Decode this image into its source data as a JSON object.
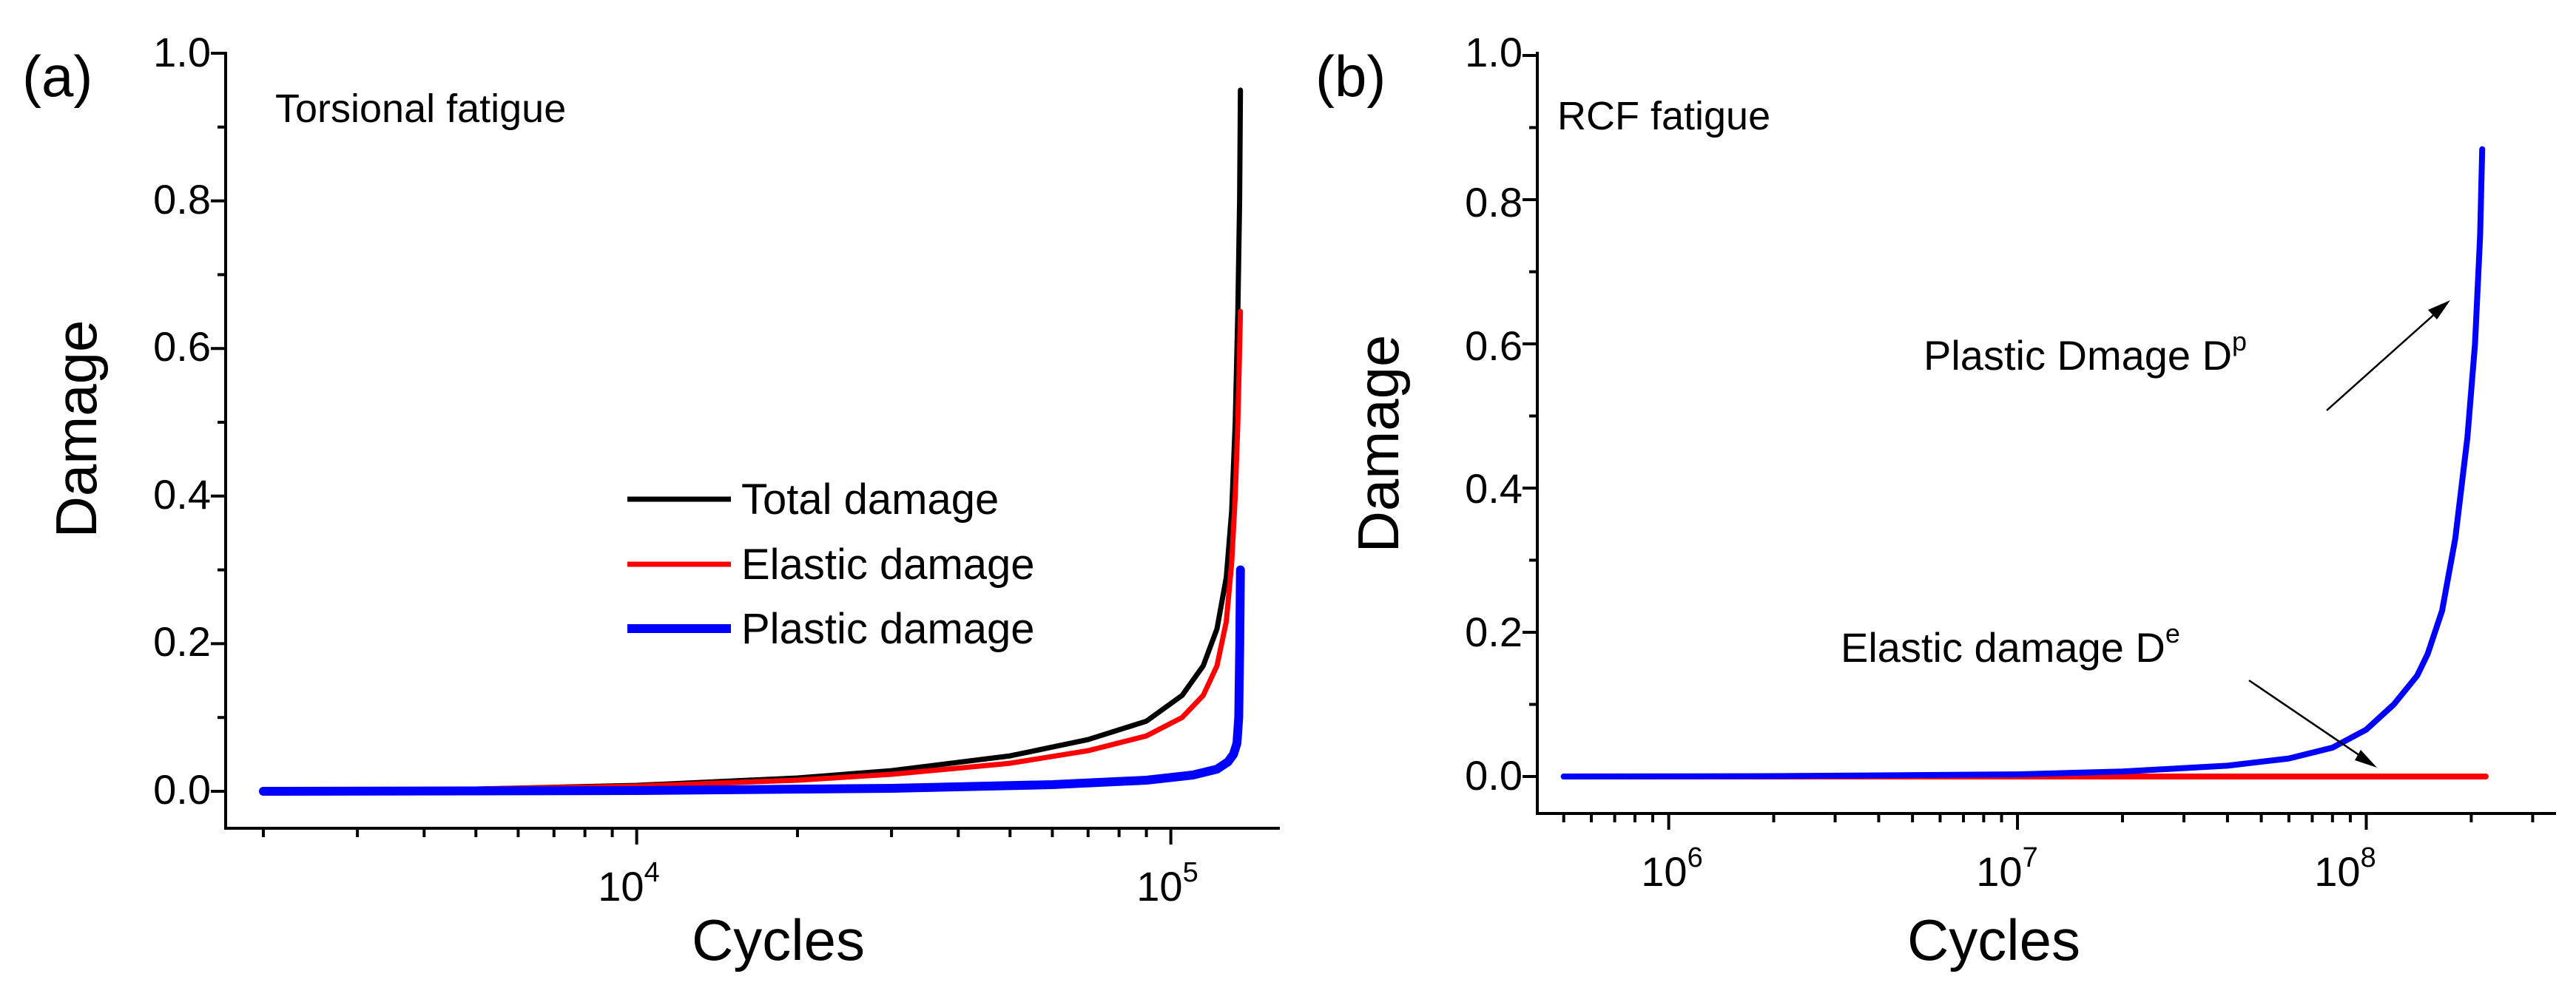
{
  "chart_data": [
    {
      "type": "line",
      "panel_label": "(a)",
      "title": "Torsional fatigue",
      "xlabel": "Cycles",
      "ylabel": "Damage",
      "x_scale": "log",
      "xlim": [
        1700,
        160000
      ],
      "ylim": [
        0,
        1.0
      ],
      "y_ticks": [
        0.0,
        0.2,
        0.4,
        0.6,
        0.8,
        1.0
      ],
      "y_tick_labels": [
        "0.0",
        "0.2",
        "0.4",
        "0.6",
        "0.8",
        "1.0"
      ],
      "x_major_ticks": [
        {
          "value": 10000,
          "base": "10",
          "exp": "4"
        },
        {
          "value": 100000,
          "base": "10",
          "exp": "5"
        }
      ],
      "legend": {
        "position": "center-right",
        "entries": [
          "Total damage",
          "Elastic damage",
          "Plastic damage"
        ]
      },
      "series": [
        {
          "name": "Total damage",
          "color": "#000000",
          "width": 7,
          "points": [
            [
              2000,
              0.0
            ],
            [
              5000,
              0.003
            ],
            [
              10000,
              0.008
            ],
            [
              20000,
              0.018
            ],
            [
              30000,
              0.028
            ],
            [
              50000,
              0.048
            ],
            [
              70000,
              0.07
            ],
            [
              90000,
              0.095
            ],
            [
              105000,
              0.13
            ],
            [
              115000,
              0.17
            ],
            [
              122000,
              0.22
            ],
            [
              127000,
              0.29
            ],
            [
              130000,
              0.38
            ],
            [
              132000,
              0.5
            ],
            [
              133500,
              0.65
            ],
            [
              134500,
              0.8
            ],
            [
              135000,
              0.95
            ]
          ]
        },
        {
          "name": "Elastic damage",
          "color": "#ff0000",
          "width": 7,
          "points": [
            [
              2000,
              0.0
            ],
            [
              5000,
              0.003
            ],
            [
              10000,
              0.007
            ],
            [
              20000,
              0.015
            ],
            [
              30000,
              0.023
            ],
            [
              50000,
              0.038
            ],
            [
              70000,
              0.055
            ],
            [
              90000,
              0.075
            ],
            [
              105000,
              0.1
            ],
            [
              115000,
              0.13
            ],
            [
              122000,
              0.17
            ],
            [
              127000,
              0.23
            ],
            [
              130000,
              0.31
            ],
            [
              132000,
              0.4
            ],
            [
              133500,
              0.5
            ],
            [
              134500,
              0.6
            ],
            [
              135000,
              0.65
            ]
          ]
        },
        {
          "name": "Plastic damage",
          "color": "#0000ff",
          "width": 12,
          "points": [
            [
              2000,
              0.0
            ],
            [
              10000,
              0.001
            ],
            [
              30000,
              0.004
            ],
            [
              60000,
              0.009
            ],
            [
              90000,
              0.015
            ],
            [
              110000,
              0.022
            ],
            [
              122000,
              0.03
            ],
            [
              128000,
              0.04
            ],
            [
              131000,
              0.05
            ],
            [
              133000,
              0.065
            ],
            [
              134000,
              0.1
            ],
            [
              134600,
              0.2
            ],
            [
              135000,
              0.3
            ]
          ]
        }
      ]
    },
    {
      "type": "line",
      "panel_label": "(b)",
      "title": "RCF fatigue",
      "xlabel": "Cycles",
      "ylabel": "Damage",
      "x_scale": "log",
      "xlim": [
        420000,
        350000000
      ],
      "ylim": [
        -0.05,
        1.0
      ],
      "y_ticks": [
        0.0,
        0.2,
        0.4,
        0.6,
        0.8,
        1.0
      ],
      "y_tick_labels": [
        "0.0",
        "0.2",
        "0.4",
        "0.6",
        "0.8",
        "1.0"
      ],
      "x_major_ticks": [
        {
          "value": 1000000,
          "base": "10",
          "exp": "6"
        },
        {
          "value": 10000000,
          "base": "10",
          "exp": "7"
        },
        {
          "value": 100000000,
          "base": "10",
          "exp": "8"
        }
      ],
      "annotations": [
        {
          "text": "Plastic Dmage D",
          "sup": "p",
          "target": [
            210000000,
            0.66
          ]
        },
        {
          "text": "Elastic damage D",
          "sup": "e",
          "target": [
            130000000,
            0.003
          ]
        }
      ],
      "series": [
        {
          "name": "Elastic damage",
          "color": "#ff0000",
          "width": 8,
          "points": [
            [
              500000,
              0.0
            ],
            [
              220000000,
              0.0
            ]
          ]
        },
        {
          "name": "Plastic damage",
          "color": "#0000ff",
          "width": 8,
          "points": [
            [
              500000,
              0.0
            ],
            [
              2000000,
              0.0005
            ],
            [
              10000000,
              0.003
            ],
            [
              20000000,
              0.007
            ],
            [
              40000000,
              0.015
            ],
            [
              60000000,
              0.025
            ],
            [
              80000000,
              0.04
            ],
            [
              100000000,
              0.065
            ],
            [
              120000000,
              0.1
            ],
            [
              140000000,
              0.14
            ],
            [
              150000000,
              0.17
            ],
            [
              165000000,
              0.23
            ],
            [
              180000000,
              0.33
            ],
            [
              195000000,
              0.47
            ],
            [
              205000000,
              0.6
            ],
            [
              212000000,
              0.75
            ],
            [
              215000000,
              0.87
            ]
          ]
        }
      ]
    }
  ]
}
